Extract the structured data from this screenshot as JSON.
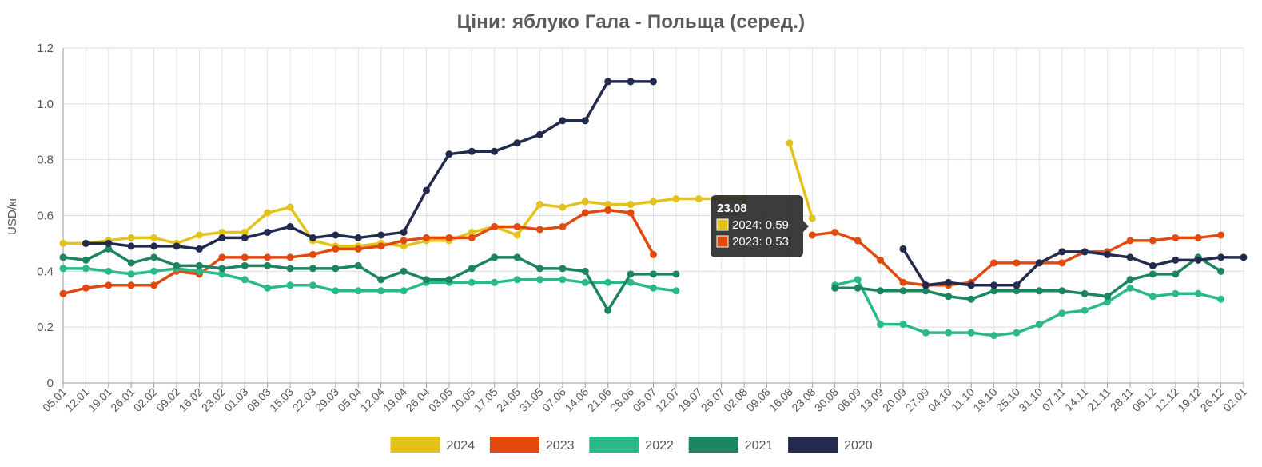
{
  "chart_data": {
    "type": "line",
    "title": "Ціни: яблуко Гала - Польща (серед.)",
    "ylabel": "USD/кг",
    "xlabel": "",
    "ylim": [
      0,
      1.2
    ],
    "yticks": [
      "0",
      "0.2",
      "0.4",
      "0.6",
      "0.8",
      "1.0",
      "1.2"
    ],
    "grid": true,
    "legend_position": "bottom",
    "categories": [
      "05.01",
      "12.01",
      "19.01",
      "26.01",
      "02.02",
      "09.02",
      "16.02",
      "23.02",
      "01.03",
      "08.03",
      "15.03",
      "22.03",
      "29.03",
      "05.04",
      "12.04",
      "19.04",
      "26.04",
      "03.05",
      "10.05",
      "17.05",
      "24.05",
      "31.05",
      "07.06",
      "14.06",
      "21.06",
      "28.06",
      "05.07",
      "12.07",
      "19.07",
      "26.07",
      "02.08",
      "09.08",
      "16.08",
      "23.08",
      "30.08",
      "06.09",
      "13.09",
      "20.09",
      "27.09",
      "04.10",
      "11.10",
      "18.10",
      "25.10",
      "31.10",
      "07.11",
      "14.11",
      "21.11",
      "28.11",
      "05.12",
      "12.12",
      "19.12",
      "26.12",
      "02.01"
    ],
    "series": [
      {
        "name": "2024",
        "color": "#e3c31b",
        "values": [
          0.5,
          0.5,
          0.51,
          0.52,
          0.52,
          0.5,
          0.53,
          0.54,
          0.54,
          0.61,
          0.63,
          0.51,
          0.49,
          0.49,
          0.5,
          0.49,
          0.51,
          0.51,
          0.54,
          0.56,
          0.53,
          0.64,
          0.63,
          0.65,
          0.64,
          0.64,
          0.65,
          0.66,
          0.66,
          0.66,
          0.66,
          null,
          0.86,
          0.59,
          null,
          null,
          null,
          null,
          null,
          null,
          null,
          null,
          null,
          null,
          null,
          null,
          null,
          null,
          null,
          null,
          null,
          null,
          null
        ]
      },
      {
        "name": "2023",
        "color": "#e04a0f",
        "values": [
          0.32,
          0.34,
          0.35,
          0.35,
          0.35,
          0.4,
          0.39,
          0.45,
          0.45,
          0.45,
          0.45,
          0.46,
          0.48,
          0.48,
          0.49,
          0.51,
          0.52,
          0.52,
          0.52,
          0.56,
          0.56,
          0.55,
          0.56,
          0.61,
          0.62,
          0.61,
          0.46,
          null,
          null,
          null,
          null,
          null,
          null,
          0.53,
          0.54,
          0.51,
          0.44,
          0.36,
          0.35,
          0.35,
          0.36,
          0.43,
          0.43,
          0.43,
          0.43,
          0.47,
          0.47,
          0.51,
          0.51,
          0.52,
          0.52,
          0.53,
          null
        ]
      },
      {
        "name": "2022",
        "color": "#2bb98a",
        "values": [
          0.41,
          0.41,
          0.4,
          0.39,
          0.4,
          0.41,
          0.4,
          0.39,
          0.37,
          0.34,
          0.35,
          0.35,
          0.33,
          0.33,
          0.33,
          0.33,
          0.36,
          0.36,
          0.36,
          0.36,
          0.37,
          0.37,
          0.37,
          0.36,
          0.36,
          0.36,
          0.34,
          0.33,
          null,
          null,
          null,
          null,
          null,
          null,
          0.35,
          0.37,
          0.21,
          0.21,
          0.18,
          0.18,
          0.18,
          0.17,
          0.18,
          0.21,
          0.25,
          0.26,
          0.29,
          0.34,
          0.31,
          0.32,
          0.32,
          0.3,
          null
        ]
      },
      {
        "name": "2021",
        "color": "#1d8462",
        "values": [
          0.45,
          0.44,
          0.48,
          0.43,
          0.45,
          0.42,
          0.42,
          0.41,
          0.42,
          0.42,
          0.41,
          0.41,
          0.41,
          0.42,
          0.37,
          0.4,
          0.37,
          0.37,
          0.41,
          0.45,
          0.45,
          0.41,
          0.41,
          0.4,
          0.26,
          0.39,
          0.39,
          0.39,
          null,
          null,
          null,
          null,
          null,
          null,
          0.34,
          0.34,
          0.33,
          0.33,
          0.33,
          0.31,
          0.3,
          0.33,
          0.33,
          0.33,
          0.33,
          0.32,
          0.31,
          0.37,
          0.39,
          0.39,
          0.45,
          0.4,
          null
        ]
      },
      {
        "name": "2020",
        "color": "#222a4d",
        "values": [
          null,
          0.5,
          0.5,
          0.49,
          0.49,
          0.49,
          0.48,
          0.52,
          0.52,
          0.54,
          0.56,
          0.52,
          0.53,
          0.52,
          0.53,
          0.54,
          0.69,
          0.82,
          0.83,
          0.83,
          0.86,
          0.89,
          0.94,
          0.94,
          1.08,
          1.08,
          1.08,
          null,
          null,
          null,
          null,
          null,
          null,
          null,
          null,
          null,
          null,
          0.48,
          0.35,
          0.36,
          0.35,
          0.35,
          0.35,
          0.43,
          0.47,
          0.47,
          0.46,
          0.45,
          0.42,
          0.44,
          0.44,
          0.45,
          0.45
        ]
      }
    ],
    "tooltip": {
      "title": "23.08",
      "rows": [
        "2024: 0.59",
        "2023: 0.53"
      ],
      "row_colors": [
        "#e3c31b",
        "#e04a0f"
      ]
    }
  }
}
